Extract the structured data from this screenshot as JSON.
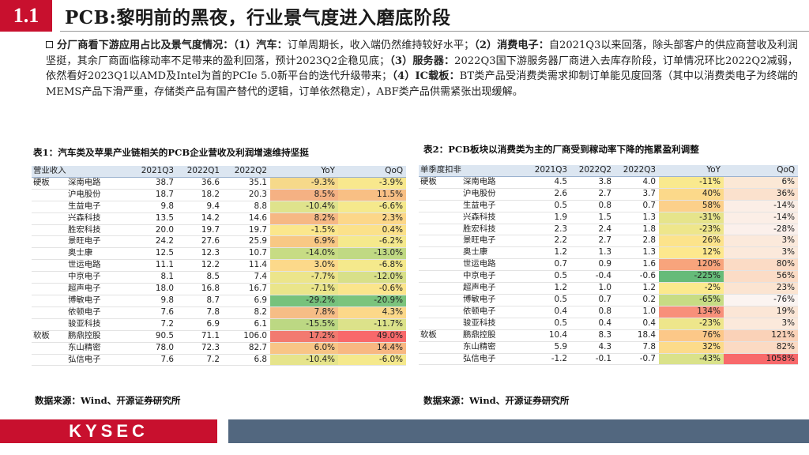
{
  "header": {
    "section_number": "1.1",
    "title": "PCB:黎明前的黑夜，行业景气度进入磨底阶段"
  },
  "summary": {
    "lead": "分厂商看下游应用占比及景气度情况：",
    "s1_label": "（1）汽车：",
    "s1_text": "订单周期长，收入端仍然维持较好水平；",
    "s2_label": "（2）消费电子：",
    "s2_text": "自2021Q3以来回落，除头部客户的供应商营收及利润坚挺，其余厂商面临稼动率不足带来的盈利回落，预计2023Q2企稳见底；",
    "s3_label": "（3）服务器：",
    "s3_text": "2022Q3国下游服务器厂商进入去库存阶段，订单情况环比2022Q2减弱，依然看好2023Q1以AMD及Intel为首的PCIe 5.0新平台的迭代升级带来；",
    "s4_label": "（4）IC载板：",
    "s4_text": "BT类产品受消费类需求抑制订单能见度回落（其中以消费类电子为终端的MEMS产品下滑严重，存储类产品有国产替代的逻辑，订单依然稳定），ABF类产品供需紧张出现缓解。"
  },
  "table1": {
    "caption": "表1：汽车类及苹果产业链相关的PCB企业营收及利润增速维持坚挺",
    "headers": [
      "营业收入（亿元）",
      "",
      "2021Q3",
      "2022Q1",
      "2022Q2",
      "YoY",
      "QoQ"
    ],
    "rows": [
      [
        "硬板",
        "深南电路",
        "38.7",
        "36.6",
        "35.1",
        "-9.3%",
        "-3.9%"
      ],
      [
        "",
        "沪电股份",
        "18.7",
        "18.2",
        "20.3",
        "8.5%",
        "11.5%"
      ],
      [
        "",
        "生益电子",
        "9.8",
        "9.4",
        "8.8",
        "-10.4%",
        "-6.6%"
      ],
      [
        "",
        "兴森科技",
        "13.5",
        "14.2",
        "14.6",
        "8.2%",
        "2.3%"
      ],
      [
        "",
        "胜宏科技",
        "20.0",
        "19.7",
        "19.7",
        "-1.5%",
        "0.4%"
      ],
      [
        "",
        "景旺电子",
        "24.2",
        "27.6",
        "25.9",
        "6.9%",
        "-6.2%"
      ],
      [
        "",
        "奥士康",
        "12.5",
        "12.3",
        "10.7",
        "-14.0%",
        "-13.0%"
      ],
      [
        "",
        "世运电路",
        "11.1",
        "12.2",
        "11.4",
        "3.0%",
        "-6.8%"
      ],
      [
        "",
        "中京电子",
        "8.1",
        "8.5",
        "7.4",
        "-7.7%",
        "-12.0%"
      ],
      [
        "",
        "超声电子",
        "18.0",
        "16.8",
        "16.7",
        "-7.1%",
        "-0.6%"
      ],
      [
        "",
        "博敏电子",
        "9.8",
        "8.7",
        "6.9",
        "-29.2%",
        "-20.9%"
      ],
      [
        "",
        "依顿电子",
        "7.6",
        "7.8",
        "8.2",
        "7.8%",
        "4.3%"
      ],
      [
        "",
        "骏亚科技",
        "7.2",
        "6.9",
        "6.1",
        "-15.5%",
        "-11.7%"
      ],
      [
        "软板",
        "鹏鼎控股",
        "90.5",
        "71.1",
        "106.0",
        "17.2%",
        "49.0%"
      ],
      [
        "",
        "东山精密",
        "78.0",
        "72.3",
        "82.7",
        "6.0%",
        "14.4%"
      ],
      [
        "",
        "弘信电子",
        "7.6",
        "7.2",
        "6.8",
        "-10.4%",
        "-6.0%"
      ]
    ],
    "yoy_colors": [
      "#f6d98a",
      "#f5b183",
      "#dfe38c",
      "#f6b884",
      "#fbe78c",
      "#f8c884",
      "#c7dc84",
      "#fcd98a",
      "#ece58b",
      "#eae58a",
      "#76c27c",
      "#f6bd86",
      "#bcd883",
      "#f27a70",
      "#f8c586",
      "#e6e48b"
    ],
    "qoq_colors": [
      "#f8e88d",
      "#f8bf84",
      "#f5e98c",
      "#fcd789",
      "#fbe18a",
      "#f5e98c",
      "#c0d983",
      "#f5e98c",
      "#d8e089",
      "#fbe58c",
      "#7bc47d",
      "#fcd889",
      "#dce28a",
      "#f8696b",
      "#f8b882",
      "#f5e98c"
    ],
    "source": "数据来源：Wind、开源证券研究所"
  },
  "table2": {
    "caption": "表2：PCB板块以消费类为主的厂商受到稼动率下降的拖累盈利调整",
    "headers": [
      "单季度扣非净利润（亿元）",
      "",
      "2021Q3",
      "2022Q2",
      "2022Q3",
      "YoY",
      "QoQ"
    ],
    "rows": [
      [
        "硬板",
        "深南电路",
        "4.5",
        "3.8",
        "4.0",
        "-11%",
        "6%"
      ],
      [
        "",
        "沪电股份",
        "2.6",
        "2.7",
        "3.7",
        "40%",
        "36%"
      ],
      [
        "",
        "生益电子",
        "0.5",
        "0.8",
        "0.7",
        "58%",
        "-14%"
      ],
      [
        "",
        "兴森科技",
        "1.9",
        "1.5",
        "1.3",
        "-31%",
        "-14%"
      ],
      [
        "",
        "胜宏科技",
        "2.3",
        "2.4",
        "1.8",
        "-23%",
        "-28%"
      ],
      [
        "",
        "景旺电子",
        "2.2",
        "2.7",
        "2.8",
        "26%",
        "3%"
      ],
      [
        "",
        "奥士康",
        "1.2",
        "1.3",
        "1.3",
        "12%",
        "3%"
      ],
      [
        "",
        "世运电路",
        "0.7",
        "0.9",
        "1.6",
        "120%",
        "80%"
      ],
      [
        "",
        "中京电子",
        "0.5",
        "-0.4",
        "-0.6",
        "-225%",
        "56%"
      ],
      [
        "",
        "超声电子",
        "1.2",
        "1.0",
        "1.2",
        "-2%",
        "23%"
      ],
      [
        "",
        "博敏电子",
        "0.5",
        "0.7",
        "0.2",
        "-65%",
        "-76%"
      ],
      [
        "",
        "依顿电子",
        "0.4",
        "0.8",
        "1.0",
        "134%",
        "19%"
      ],
      [
        "",
        "骏亚科技",
        "0.5",
        "0.4",
        "0.4",
        "-23%",
        "3%"
      ],
      [
        "软板",
        "鹏鼎控股",
        "10.4",
        "8.3",
        "18.4",
        "76%",
        "121%"
      ],
      [
        "",
        "东山精密",
        "5.9",
        "4.3",
        "7.8",
        "32%",
        "82%"
      ],
      [
        "",
        "弘信电子",
        "-1.2",
        "-0.1",
        "-0.7",
        "-43%",
        "1058%"
      ]
    ],
    "yoy_colors": [
      "#f9e98e",
      "#fcd98a",
      "#fcd08a",
      "#e6e48b",
      "#eee68b",
      "#fce38b",
      "#fde88d",
      "#f8a47c",
      "#66bb79",
      "#fbe98d",
      "#c7dc84",
      "#f8907a",
      "#eee68b",
      "#fcc888",
      "#fcdb8a",
      "#dae28a"
    ],
    "qoq_colors": [
      "#fbe8d6",
      "#fbe1cd",
      "#fbeee6",
      "#fbeee6",
      "#fbf0eb",
      "#fbe9db",
      "#fbe9db",
      "#fbdbc5",
      "#fbdcc6",
      "#fbe4d1",
      "#fbf4f1",
      "#fbe6d6",
      "#fbe9db",
      "#fad2b8",
      "#fbdac3",
      "#f8696b"
    ],
    "source": "数据来源：Wind、开源证券研究所"
  },
  "footer": {
    "logo_text": "KYSEC"
  },
  "colors": {
    "brand_red": "#c8102e",
    "footer_slate": "#52677f",
    "header_row": "#dce6f1"
  }
}
